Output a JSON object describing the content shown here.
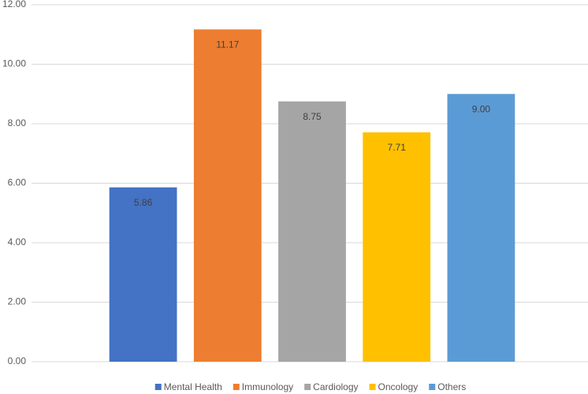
{
  "chart_data": {
    "type": "bar",
    "categories": [
      "Mental Health",
      "Immunology",
      "Cardiology",
      "Oncology",
      "Others"
    ],
    "values": [
      5.86,
      11.17,
      8.75,
      7.71,
      9.0
    ],
    "value_labels": [
      "5.86",
      "11.17",
      "8.75",
      "7.71",
      "9.00"
    ],
    "colors": [
      "#4472c4",
      "#ed7d31",
      "#a5a5a5",
      "#ffc000",
      "#5b9bd5"
    ],
    "ylim": [
      0,
      12
    ],
    "yticks": [
      {
        "value": 0,
        "label": "0.00"
      },
      {
        "value": 2,
        "label": "2.00"
      },
      {
        "value": 4,
        "label": "4.00"
      },
      {
        "value": 6,
        "label": "6.00"
      },
      {
        "value": 8,
        "label": "8.00"
      },
      {
        "value": 10,
        "label": "10.00"
      },
      {
        "value": 12,
        "label": "12.00"
      }
    ],
    "grid": true,
    "legend": "bottom"
  }
}
